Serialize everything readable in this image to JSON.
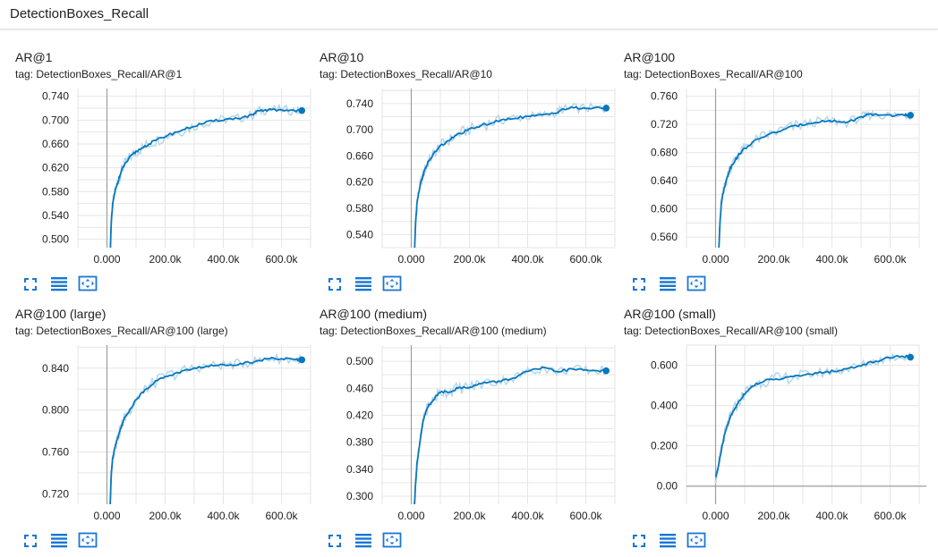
{
  "section": {
    "title": "DetectionBoxes_Recall"
  },
  "colors": {
    "line": "#0877bd",
    "raw": "#b5d7ec",
    "grid": "#e6e6e6",
    "axis": "#9e9e9e",
    "icon": "#1976d2"
  },
  "toolbar": {
    "icons": [
      "fullscreen-icon",
      "data-series-icon",
      "fit-domain-icon"
    ]
  },
  "chart_data": [
    {
      "type": "line",
      "title": "AR@1",
      "tag": "tag: DetectionBoxes_Recall/AR@1",
      "xlabel": "",
      "ylabel": "",
      "xlim": [
        -100000,
        700000
      ],
      "ylim": [
        0.486,
        0.753
      ],
      "xticks": [
        0,
        200000,
        400000,
        600000
      ],
      "xtick_labels": [
        "0.000",
        "200.0k",
        "400.0k",
        "600.0k"
      ],
      "yticks": [
        0.5,
        0.54,
        0.58,
        0.62,
        0.66,
        0.7,
        0.74
      ],
      "ytick_labels": [
        "0.500",
        "0.540",
        "0.580",
        "0.620",
        "0.660",
        "0.700",
        "0.740"
      ],
      "grid": true,
      "series": [
        {
          "x": [
            10000,
            15000,
            20000,
            30000,
            40000,
            50000,
            60000,
            80000,
            100000,
            130000,
            160000,
            200000,
            250000,
            300000,
            350000,
            400000,
            450000,
            500000,
            520000,
            550000,
            600000,
            650000,
            670000
          ],
          "y": [
            0.46,
            0.53,
            0.56,
            0.585,
            0.6,
            0.615,
            0.625,
            0.638,
            0.647,
            0.656,
            0.664,
            0.673,
            0.682,
            0.69,
            0.697,
            0.701,
            0.703,
            0.708,
            0.715,
            0.717,
            0.717,
            0.716,
            0.716
          ]
        }
      ]
    },
    {
      "type": "line",
      "title": "AR@10",
      "tag": "tag: DetectionBoxes_Recall/AR@10",
      "xlabel": "",
      "ylabel": "",
      "xlim": [
        -100000,
        700000
      ],
      "ylim": [
        0.52,
        0.763
      ],
      "xticks": [
        0,
        200000,
        400000,
        600000
      ],
      "xtick_labels": [
        "0.000",
        "200.0k",
        "400.0k",
        "600.0k"
      ],
      "yticks": [
        0.54,
        0.58,
        0.62,
        0.66,
        0.7,
        0.74
      ],
      "ytick_labels": [
        "0.540",
        "0.580",
        "0.620",
        "0.660",
        "0.700",
        "0.740"
      ],
      "grid": true,
      "series": [
        {
          "x": [
            10000,
            15000,
            20000,
            30000,
            40000,
            50000,
            60000,
            80000,
            100000,
            130000,
            160000,
            200000,
            250000,
            300000,
            350000,
            400000,
            450000,
            500000,
            520000,
            550000,
            600000,
            650000,
            670000
          ],
          "y": [
            0.5,
            0.56,
            0.59,
            0.615,
            0.63,
            0.643,
            0.652,
            0.665,
            0.675,
            0.684,
            0.693,
            0.7,
            0.708,
            0.713,
            0.718,
            0.72,
            0.722,
            0.727,
            0.731,
            0.733,
            0.733,
            0.733,
            0.733
          ]
        }
      ]
    },
    {
      "type": "line",
      "title": "AR@100",
      "tag": "tag: DetectionBoxes_Recall/AR@100",
      "xlabel": "",
      "ylabel": "",
      "xlim": [
        -100000,
        700000
      ],
      "ylim": [
        0.545,
        0.771
      ],
      "xticks": [
        0,
        200000,
        400000,
        600000
      ],
      "xtick_labels": [
        "0.000",
        "200.0k",
        "400.0k",
        "600.0k"
      ],
      "yticks": [
        0.56,
        0.6,
        0.64,
        0.68,
        0.72,
        0.76
      ],
      "ytick_labels": [
        "0.560",
        "0.600",
        "0.640",
        "0.680",
        "0.720",
        "0.760"
      ],
      "grid": true,
      "series": [
        {
          "x": [
            10000,
            15000,
            20000,
            30000,
            40000,
            50000,
            60000,
            80000,
            100000,
            130000,
            160000,
            200000,
            250000,
            300000,
            350000,
            400000,
            450000,
            500000,
            520000,
            550000,
            600000,
            650000,
            670000
          ],
          "y": [
            0.53,
            0.58,
            0.61,
            0.63,
            0.645,
            0.658,
            0.665,
            0.677,
            0.686,
            0.695,
            0.702,
            0.708,
            0.715,
            0.72,
            0.724,
            0.725,
            0.723,
            0.73,
            0.733,
            0.734,
            0.733,
            0.733,
            0.733
          ]
        }
      ]
    },
    {
      "type": "line",
      "title": "AR@100 (large)",
      "tag": "tag: DetectionBoxes_Recall/AR@100 (large)",
      "xlabel": "",
      "ylabel": "",
      "xlim": [
        -100000,
        700000
      ],
      "ylim": [
        0.71,
        0.862
      ],
      "xticks": [
        0,
        200000,
        400000,
        600000
      ],
      "xtick_labels": [
        "0.000",
        "200.0k",
        "400.0k",
        "600.0k"
      ],
      "yticks": [
        0.72,
        0.76,
        0.8,
        0.84
      ],
      "ytick_labels": [
        "0.720",
        "0.760",
        "0.800",
        "0.840"
      ],
      "grid": true,
      "series": [
        {
          "x": [
            10000,
            15000,
            20000,
            30000,
            40000,
            50000,
            60000,
            80000,
            100000,
            130000,
            160000,
            200000,
            250000,
            300000,
            350000,
            400000,
            450000,
            500000,
            550000,
            600000,
            650000,
            670000
          ],
          "y": [
            0.7,
            0.74,
            0.755,
            0.768,
            0.776,
            0.785,
            0.792,
            0.801,
            0.81,
            0.819,
            0.826,
            0.832,
            0.836,
            0.84,
            0.842,
            0.843,
            0.844,
            0.846,
            0.849,
            0.849,
            0.848,
            0.848
          ]
        }
      ]
    },
    {
      "type": "line",
      "title": "AR@100 (medium)",
      "tag": "tag: DetectionBoxes_Recall/AR@100 (medium)",
      "xlabel": "",
      "ylabel": "",
      "xlim": [
        -100000,
        700000
      ],
      "ylim": [
        0.288,
        0.524
      ],
      "xticks": [
        0,
        200000,
        400000,
        600000
      ],
      "xtick_labels": [
        "0.000",
        "200.0k",
        "400.0k",
        "600.0k"
      ],
      "yticks": [
        0.3,
        0.34,
        0.38,
        0.42,
        0.46,
        0.5
      ],
      "ytick_labels": [
        "0.300",
        "0.340",
        "0.380",
        "0.420",
        "0.460",
        "0.500"
      ],
      "grid": true,
      "series": [
        {
          "x": [
            10000,
            15000,
            20000,
            30000,
            40000,
            50000,
            60000,
            80000,
            100000,
            130000,
            160000,
            200000,
            250000,
            300000,
            350000,
            400000,
            450000,
            500000,
            550000,
            600000,
            650000,
            670000
          ],
          "y": [
            0.28,
            0.32,
            0.35,
            0.38,
            0.41,
            0.425,
            0.435,
            0.445,
            0.455,
            0.455,
            0.46,
            0.462,
            0.468,
            0.47,
            0.475,
            0.485,
            0.49,
            0.485,
            0.488,
            0.487,
            0.486,
            0.486
          ]
        }
      ]
    },
    {
      "type": "line",
      "title": "AR@100 (small)",
      "tag": "tag: DetectionBoxes_Recall/AR@100 (small)",
      "xlabel": "",
      "ylabel": "",
      "xlim": [
        -100000,
        700000
      ],
      "ylim": [
        -0.09,
        0.7
      ],
      "xticks": [
        0,
        200000,
        400000,
        600000
      ],
      "xtick_labels": [
        "0.000",
        "200.0k",
        "400.0k",
        "600.0k"
      ],
      "yticks": [
        0,
        0.2,
        0.4,
        0.6
      ],
      "ytick_labels": [
        "0.00",
        "0.200",
        "0.400",
        "0.600"
      ],
      "grid": true,
      "series": [
        {
          "x": [
            0,
            10000,
            20000,
            30000,
            40000,
            50000,
            60000,
            80000,
            100000,
            130000,
            160000,
            200000,
            250000,
            300000,
            350000,
            400000,
            450000,
            500000,
            550000,
            600000,
            650000,
            670000
          ],
          "y": [
            0.04,
            0.1,
            0.18,
            0.25,
            0.3,
            0.34,
            0.37,
            0.42,
            0.46,
            0.5,
            0.52,
            0.53,
            0.54,
            0.55,
            0.56,
            0.57,
            0.58,
            0.6,
            0.62,
            0.64,
            0.645,
            0.64
          ]
        }
      ]
    }
  ]
}
